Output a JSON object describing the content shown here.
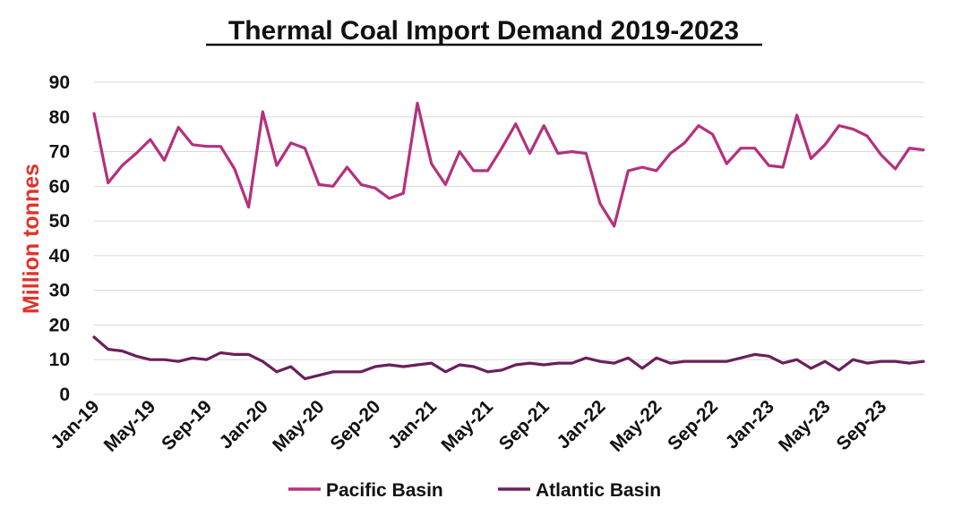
{
  "chart_data": {
    "type": "line",
    "title": "Thermal Coal Import Demand 2019-2023",
    "xlabel": "",
    "ylabel": "Million tonnes",
    "ylabel_color": "#e0332b",
    "ylim": [
      0,
      90
    ],
    "yticks": [
      0,
      10,
      20,
      30,
      40,
      50,
      60,
      70,
      80,
      90
    ],
    "grid": true,
    "legend_position": "bottom",
    "x": [
      "Jan-19",
      "Feb-19",
      "Mar-19",
      "Apr-19",
      "May-19",
      "Jun-19",
      "Jul-19",
      "Aug-19",
      "Sep-19",
      "Oct-19",
      "Nov-19",
      "Dec-19",
      "Jan-20",
      "Feb-20",
      "Mar-20",
      "Apr-20",
      "May-20",
      "Jun-20",
      "Jul-20",
      "Aug-20",
      "Sep-20",
      "Oct-20",
      "Nov-20",
      "Dec-20",
      "Jan-21",
      "Feb-21",
      "Mar-21",
      "Apr-21",
      "May-21",
      "Jun-21",
      "Jul-21",
      "Aug-21",
      "Sep-21",
      "Oct-21",
      "Nov-21",
      "Dec-21",
      "Jan-22",
      "Feb-22",
      "Mar-22",
      "Apr-22",
      "May-22",
      "Jun-22",
      "Jul-22",
      "Aug-22",
      "Sep-22",
      "Oct-22",
      "Nov-22",
      "Dec-22",
      "Jan-23",
      "Feb-23",
      "Mar-23",
      "Apr-23",
      "May-23",
      "Jun-23",
      "Jul-23",
      "Aug-23",
      "Sep-23",
      "Oct-23",
      "Nov-23",
      "Dec-23"
    ],
    "xtick_labels": [
      "Jan-19",
      "May-19",
      "Sep-19",
      "Jan-20",
      "May-20",
      "Sep-20",
      "Jan-21",
      "May-21",
      "Sep-21",
      "Jan-22",
      "May-22",
      "Sep-22",
      "Jan-23",
      "May-23",
      "Sep-23"
    ],
    "series": [
      {
        "name": "Pacific Basin",
        "color": "#b5307e",
        "values": [
          81,
          61,
          66,
          69.5,
          73.5,
          67.5,
          77,
          72,
          71.5,
          71.5,
          65,
          54,
          81.5,
          66,
          72.5,
          71,
          60.5,
          60,
          65.5,
          60.5,
          59.5,
          56.5,
          58,
          84,
          66.5,
          60.5,
          70,
          64.5,
          64.5,
          71,
          78,
          69.5,
          77.5,
          69.5,
          70,
          69.5,
          55,
          48.5,
          64.5,
          65.5,
          64.5,
          69.5,
          72.5,
          77.5,
          75,
          66.5,
          71,
          71,
          66,
          65.5,
          80.5,
          68,
          72,
          77.5,
          76.5,
          74.5,
          69,
          65,
          71,
          70.5
        ]
      },
      {
        "name": "Atlantic Basin",
        "color": "#6b1f5c",
        "values": [
          16.5,
          13,
          12.5,
          11,
          10,
          10,
          9.5,
          10.5,
          10,
          12,
          11.5,
          11.5,
          9.5,
          6.5,
          8,
          4.5,
          5.5,
          6.5,
          6.5,
          6.5,
          8,
          8.5,
          8,
          8.5,
          9,
          6.5,
          8.5,
          8,
          6.5,
          7,
          8.5,
          9,
          8.5,
          9,
          9,
          10.5,
          9.5,
          9,
          10.5,
          7.5,
          10.5,
          9,
          9.5,
          9.5,
          9.5,
          9.5,
          10.5,
          11.5,
          11,
          9,
          10,
          7.5,
          9.5,
          7,
          10,
          9,
          9.5,
          9.5,
          9,
          9.5
        ]
      }
    ]
  }
}
